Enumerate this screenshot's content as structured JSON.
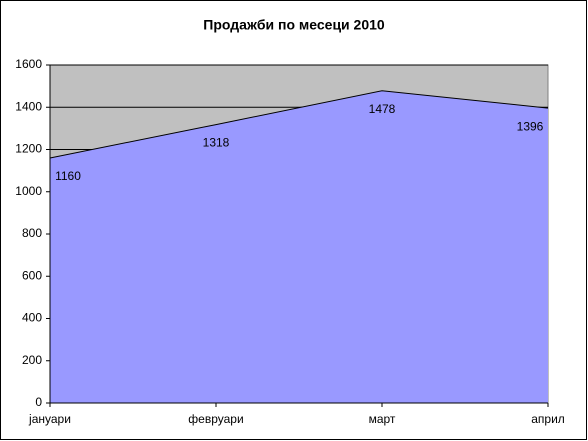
{
  "chart_data": {
    "type": "area",
    "title": "Продажби по месеци 2010",
    "categories": [
      "јануари",
      "февруари",
      "март",
      "април"
    ],
    "values": [
      1160,
      1318,
      1478,
      1396
    ],
    "color": "#9999ff",
    "background": "#c0c0c0",
    "ylim": [
      0,
      1600
    ],
    "yticks": [
      0,
      200,
      400,
      600,
      800,
      1000,
      1200,
      1400,
      1600
    ],
    "grid": true
  }
}
